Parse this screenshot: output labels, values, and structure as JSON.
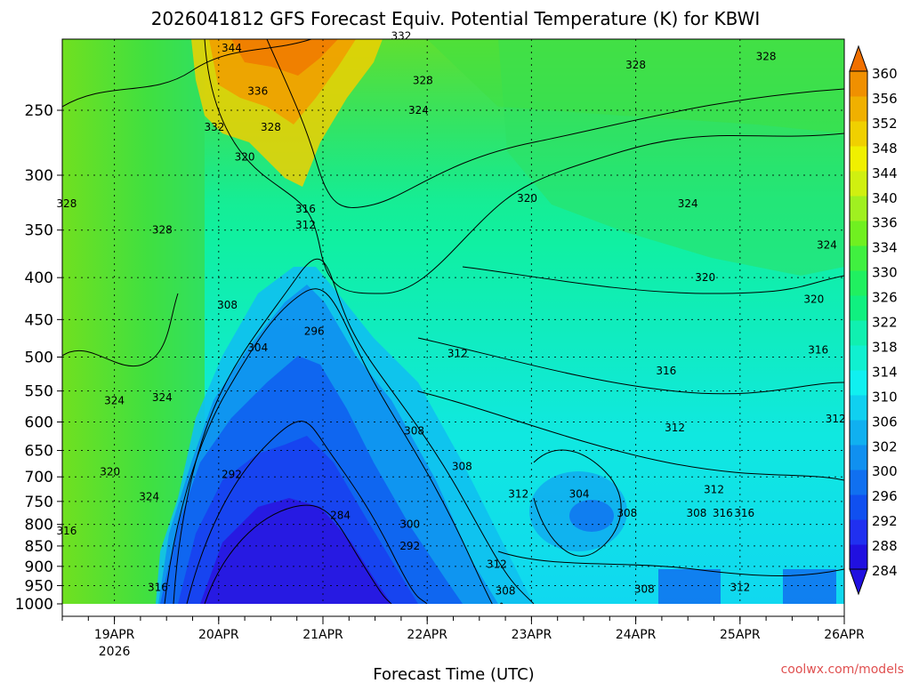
{
  "chart_data": {
    "type": "heatmap",
    "title": "2026041812 GFS Forecast Equiv. Potential Temperature (K) for KBWI",
    "xlabel": "Forecast Time (UTC)",
    "ylabel": "",
    "credit": "coolwx.com/models",
    "x_ticks": [
      "19APR",
      "20APR",
      "21APR",
      "22APR",
      "23APR",
      "24APR",
      "25APR",
      "26APR"
    ],
    "x_year_label": "2026",
    "y_ticks": [
      "250",
      "300",
      "350",
      "400",
      "450",
      "500",
      "550",
      "600",
      "650",
      "700",
      "750",
      "800",
      "850",
      "900",
      "950",
      "1000"
    ],
    "y_scale": "log",
    "ylim": [
      1000,
      200
    ],
    "xlim": [
      "18APR12",
      "26APR00"
    ],
    "colorbar": {
      "levels": [
        284,
        288,
        292,
        296,
        300,
        302,
        306,
        310,
        314,
        318,
        322,
        326,
        330,
        334,
        336,
        340,
        344,
        348,
        352,
        356,
        360
      ],
      "colors": [
        "#2010e0",
        "#2030f0",
        "#1050f0",
        "#1070f0",
        "#1090f0",
        "#10b0f0",
        "#10d0f0",
        "#10f0f0",
        "#10f0d0",
        "#10f0b0",
        "#10f080",
        "#20f060",
        "#40f040",
        "#70f020",
        "#a0f020",
        "#d0f010",
        "#f0f000",
        "#f0d000",
        "#f0b000",
        "#f09000",
        "#f07000"
      ],
      "extend": "both"
    },
    "contour_labels": [
      {
        "text": "344",
        "x": "20APR03",
        "p": 210
      },
      {
        "text": "332",
        "x": "21APR18",
        "p": 203
      },
      {
        "text": "328",
        "x": "21APR23",
        "p": 230
      },
      {
        "text": "328",
        "x": "24APR00",
        "p": 220
      },
      {
        "text": "328",
        "x": "25APR06",
        "p": 215
      },
      {
        "text": "336",
        "x": "20APR09",
        "p": 237
      },
      {
        "text": "324",
        "x": "21APR22",
        "p": 250
      },
      {
        "text": "332",
        "x": "19APR23",
        "p": 262
      },
      {
        "text": "328",
        "x": "20APR12",
        "p": 262
      },
      {
        "text": "320",
        "x": "20APR06",
        "p": 285
      },
      {
        "text": "316",
        "x": "20APR20",
        "p": 330
      },
      {
        "text": "312",
        "x": "20APR20",
        "p": 345
      },
      {
        "text": "328",
        "x": "18APR13",
        "p": 325
      },
      {
        "text": "328",
        "x": "19APR11",
        "p": 350
      },
      {
        "text": "320",
        "x": "22APR23",
        "p": 320
      },
      {
        "text": "324",
        "x": "24APR12",
        "p": 325
      },
      {
        "text": "324",
        "x": "25APR20",
        "p": 365
      },
      {
        "text": "320",
        "x": "24APR16",
        "p": 400
      },
      {
        "text": "320",
        "x": "25APR17",
        "p": 425
      },
      {
        "text": "308",
        "x": "20APR02",
        "p": 432
      },
      {
        "text": "304",
        "x": "20APR09",
        "p": 487
      },
      {
        "text": "296",
        "x": "20APR22",
        "p": 465
      },
      {
        "text": "312",
        "x": "22APR07",
        "p": 495
      },
      {
        "text": "316",
        "x": "24APR07",
        "p": 520
      },
      {
        "text": "316",
        "x": "25APR18",
        "p": 490
      },
      {
        "text": "324",
        "x": "19APR00",
        "p": 565
      },
      {
        "text": "324",
        "x": "19APR11",
        "p": 560
      },
      {
        "text": "312",
        "x": "24APR09",
        "p": 610
      },
      {
        "text": "312",
        "x": "25APR22",
        "p": 595
      },
      {
        "text": "308",
        "x": "21APR21",
        "p": 615
      },
      {
        "text": "320",
        "x": "18APR23",
        "p": 690
      },
      {
        "text": "292",
        "x": "20APR03",
        "p": 695
      },
      {
        "text": "308",
        "x": "22APR08",
        "p": 680
      },
      {
        "text": "324",
        "x": "19APR08",
        "p": 740
      },
      {
        "text": "312",
        "x": "22APR21",
        "p": 735
      },
      {
        "text": "304",
        "x": "23APR11",
        "p": 735
      },
      {
        "text": "312",
        "x": "24APR18",
        "p": 725
      },
      {
        "text": "316",
        "x": "24APR20",
        "p": 775
      },
      {
        "text": "308",
        "x": "23APR22",
        "p": 775
      },
      {
        "text": "308",
        "x": "24APR14",
        "p": 775
      },
      {
        "text": "316",
        "x": "25APR01",
        "p": 775
      },
      {
        "text": "284",
        "x": "21APR04",
        "p": 780
      },
      {
        "text": "300",
        "x": "21APR20",
        "p": 800
      },
      {
        "text": "292",
        "x": "21APR20",
        "p": 850
      },
      {
        "text": "316",
        "x": "18APR13",
        "p": 815
      },
      {
        "text": "312",
        "x": "22APR16",
        "p": 895
      },
      {
        "text": "316",
        "x": "19APR10",
        "p": 955
      },
      {
        "text": "308",
        "x": "22APR18",
        "p": 965
      },
      {
        "text": "308",
        "x": "24APR02",
        "p": 960
      },
      {
        "text": "312",
        "x": "25APR00",
        "p": 955
      }
    ]
  }
}
